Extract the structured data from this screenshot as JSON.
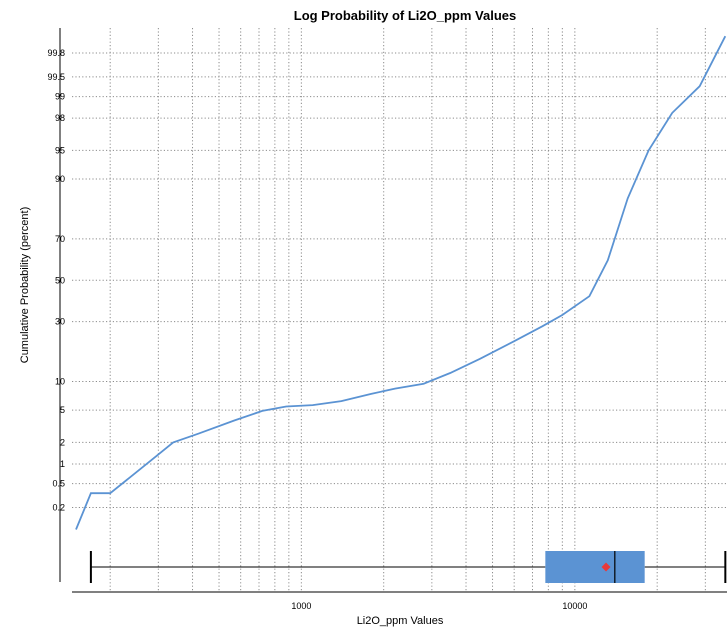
{
  "chart_data": {
    "type": "line",
    "title": "Log Probability of Li2O_ppm Values",
    "xlabel": "Li2O_ppm Values",
    "ylabel": "Cumulative Probability (percent)",
    "x_scale": "log",
    "y_scale": "probability",
    "xlim": [
      145,
      36000
    ],
    "ylim": [
      0.04,
      99.93
    ],
    "x_tick_labels": [
      "1000",
      "10000"
    ],
    "x_major_ticks": [
      1000,
      10000
    ],
    "x_minor_ticks": [
      200,
      300,
      400,
      500,
      600,
      700,
      800,
      900,
      2000,
      3000,
      4000,
      5000,
      6000,
      7000,
      8000,
      9000,
      20000,
      30000
    ],
    "y_ticks": [
      0.2,
      0.5,
      1,
      2,
      5,
      10,
      30,
      50,
      70,
      90,
      95,
      98,
      99,
      99.5,
      99.8
    ],
    "y_tick_labels": [
      "0.2",
      "0.5",
      "1",
      "2",
      "5",
      "10",
      "30",
      "50",
      "70",
      "90",
      "95",
      "98",
      "99",
      "99.5",
      "99.8"
    ],
    "grid": true,
    "series": [
      {
        "color": "#5b93d3",
        "x": [
          150,
          170,
          200,
          280,
          340,
          420,
          570,
          720,
          880,
          1100,
          1400,
          1800,
          2200,
          2800,
          3500,
          4500,
          6000,
          7600,
          9000,
          11300,
          13200,
          15600,
          18600,
          22700,
          28600,
          35500
        ],
        "y": [
          0.08,
          0.35,
          0.35,
          1.1,
          2.0,
          2.6,
          3.8,
          4.9,
          5.5,
          5.7,
          6.3,
          7.5,
          8.5,
          9.5,
          12,
          16,
          22,
          28,
          33,
          42,
          60,
          85,
          95,
          98.3,
          99.3,
          99.9
        ]
      }
    ],
    "boxplot": {
      "min": 170,
      "q1": 7800,
      "median": 14000,
      "q3": 18000,
      "max": 35500,
      "mean": 13000,
      "box_color": "#5b93d3",
      "mean_color": "#e8393b"
    }
  }
}
